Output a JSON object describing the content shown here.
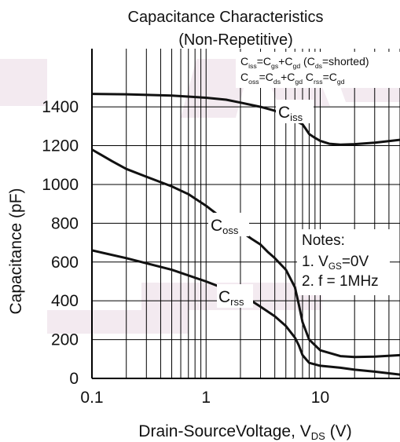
{
  "chart_data": {
    "type": "line",
    "title": "Capacitance Characteristics",
    "subtitle": "(Non-Repetitive)",
    "xlabel": {
      "main": "Drain-SourceVoltage, V",
      "sub": "DS",
      "unit": " (V)"
    },
    "ylabel": "Capacitance (pF)",
    "x_scale": "log",
    "xlim": [
      0.1,
      50
    ],
    "ylim": [
      0,
      1700
    ],
    "x_ticks": [
      "0.1",
      "1",
      "10"
    ],
    "y_ticks": [
      {
        "value": 0,
        "label": "0"
      },
      {
        "value": 200,
        "label": "200"
      },
      {
        "value": 400,
        "label": "400"
      },
      {
        "value": 600,
        "label": "600"
      },
      {
        "value": 800,
        "label": "800"
      },
      {
        "value": 1000,
        "label": "1000"
      },
      {
        "value": 1200,
        "label": "1200"
      },
      {
        "value": 1400,
        "label": "1400"
      }
    ],
    "grid": true,
    "equations": {
      "line1": [
        {
          "t": "C"
        },
        {
          "t": "iss",
          "sub": true
        },
        {
          "t": "=C"
        },
        {
          "t": "gs",
          "sub": true
        },
        {
          "t": "+C"
        },
        {
          "t": "gd",
          "sub": true
        },
        {
          "t": " (C"
        },
        {
          "t": "ds",
          "sub": true
        },
        {
          "t": "=shorted)"
        }
      ],
      "line2": [
        {
          "t": "C"
        },
        {
          "t": "oss",
          "sub": true
        },
        {
          "t": "=C"
        },
        {
          "t": "ds",
          "sub": true
        },
        {
          "t": "+C"
        },
        {
          "t": "gd",
          "sub": true
        },
        {
          "t": "    C"
        },
        {
          "t": "rss",
          "sub": true
        },
        {
          "t": "=C"
        },
        {
          "t": "gd",
          "sub": true
        }
      ]
    },
    "notes": {
      "heading": "Notes:",
      "line1": [
        {
          "t": "1. V"
        },
        {
          "t": "GS",
          "sub": true
        },
        {
          "t": "=0V"
        }
      ],
      "line2": [
        {
          "t": "2. f = 1MHz"
        }
      ]
    },
    "series": [
      {
        "label": {
          "main": "C",
          "sub": "iss"
        },
        "color": "#111111",
        "x": [
          0.1,
          0.2,
          0.5,
          1,
          1.5,
          2,
          3,
          4,
          5,
          6,
          7,
          7.5,
          8,
          9,
          10,
          12,
          15,
          20,
          30,
          50
        ],
        "y": [
          1467,
          1465,
          1458,
          1447,
          1437,
          1422,
          1400,
          1380,
          1350,
          1330,
          1310,
          1285,
          1260,
          1240,
          1225,
          1210,
          1205,
          1208,
          1215,
          1230
        ]
      },
      {
        "label": {
          "main": "C",
          "sub": "oss"
        },
        "color": "#111111",
        "x": [
          0.1,
          0.15,
          0.2,
          0.3,
          0.5,
          0.7,
          1,
          1.5,
          2,
          2.5,
          3,
          3.5,
          4,
          5,
          6,
          6.5,
          7,
          8,
          10,
          15,
          20,
          30,
          50
        ],
        "y": [
          1180,
          1120,
          1080,
          1040,
          990,
          950,
          890,
          810,
          760,
          720,
          690,
          650,
          620,
          560,
          470,
          380,
          290,
          200,
          145,
          115,
          110,
          112,
          120
        ]
      },
      {
        "label": {
          "main": "C",
          "sub": "rss"
        },
        "color": "#111111",
        "x": [
          0.1,
          0.2,
          0.5,
          1,
          1.5,
          2,
          2.5,
          3,
          4,
          5,
          6,
          6.5,
          7,
          8,
          10,
          15,
          20,
          30,
          50
        ],
        "y": [
          660,
          620,
          560,
          500,
          460,
          430,
          400,
          370,
          320,
          270,
          210,
          170,
          120,
          80,
          65,
          55,
          45,
          35,
          20
        ]
      }
    ]
  }
}
